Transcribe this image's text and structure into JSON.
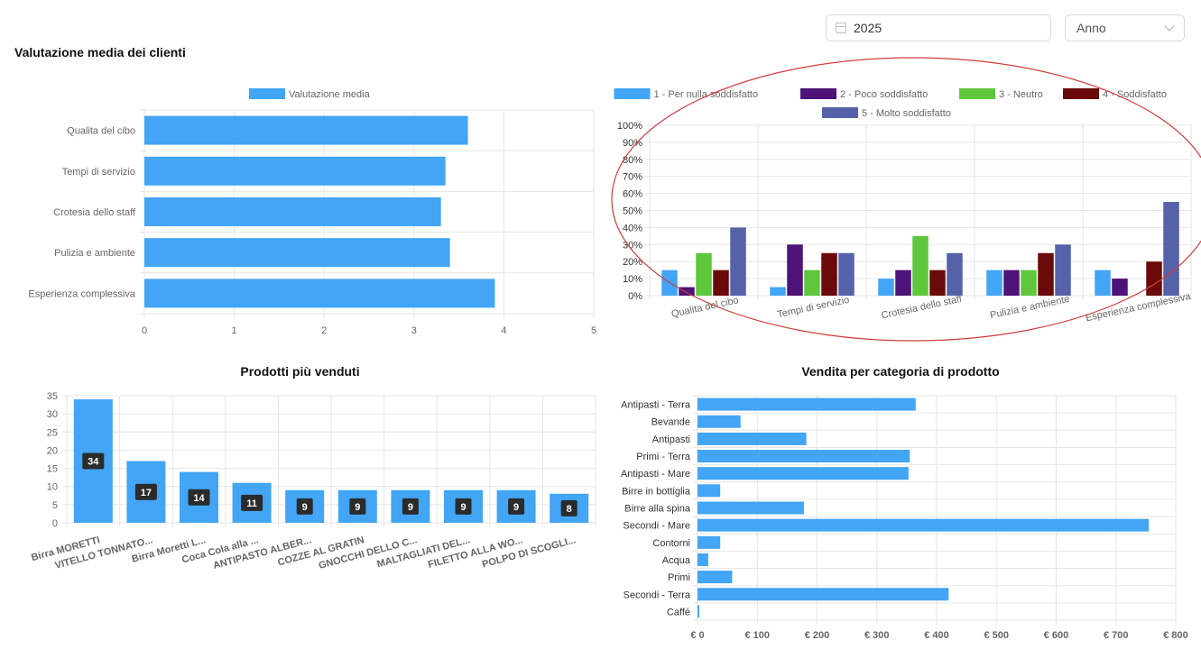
{
  "header": {
    "date_value": "2025",
    "period_select": "Anno",
    "section_title": "Valutazione media dei clienti"
  },
  "colors": {
    "bar_blue": "#42a5f5",
    "highlight_ellipse": "#d23b3b"
  },
  "icons": {
    "calendar": "calendar-icon",
    "dropdown": "chevron-down-icon"
  },
  "chart_data": [
    {
      "id": "avg",
      "type": "bar",
      "orientation": "horizontal",
      "title": "",
      "categories": [
        "Qualita del cibo",
        "Tempi di servizio",
        "Crotesia dello staff",
        "Pulizia e ambiente",
        "Esperienza complessiva"
      ],
      "series": [
        {
          "name": "Valutazione media",
          "values": [
            3.6,
            3.35,
            3.3,
            3.4,
            3.9
          ],
          "color": "#42a5f5"
        }
      ],
      "xlim": [
        0,
        5
      ],
      "ticks": [
        "0",
        "1",
        "2",
        "3",
        "4",
        "5"
      ],
      "legend": "top",
      "grid": true
    },
    {
      "id": "dist",
      "type": "bar",
      "title": "",
      "categories": [
        "Qualita del cibo",
        "Tempi di servizio",
        "Crotesia dello staff",
        "Pulizia e ambiente",
        "Esperienza complessiva"
      ],
      "series": [
        {
          "name": "1 - Per nulla soddisfatto",
          "color": "#42a5f5",
          "values": [
            15,
            5,
            10,
            15,
            15
          ]
        },
        {
          "name": "2 - Poco soddisfatto",
          "color": "#4e1378",
          "values": [
            5,
            30,
            15,
            15,
            10
          ]
        },
        {
          "name": "3 - Neutro",
          "color": "#5ec73c",
          "values": [
            25,
            15,
            35,
            15,
            0
          ]
        },
        {
          "name": "4 - Soddisfatto",
          "color": "#6b0a0a",
          "values": [
            15,
            25,
            15,
            25,
            20
          ]
        },
        {
          "name": "5 - Molto soddisfatto",
          "color": "#5561a8",
          "values": [
            40,
            25,
            25,
            30,
            55
          ]
        }
      ],
      "ylim": [
        0,
        100
      ],
      "ticks": [
        "0%",
        "10%",
        "20%",
        "30%",
        "40%",
        "50%",
        "60%",
        "70%",
        "80%",
        "90%",
        "100%"
      ],
      "legend": "top",
      "grid": true
    },
    {
      "id": "top",
      "type": "bar",
      "title": "Prodotti più venduti",
      "categories": [
        "Birra MORETTI",
        "VITELLO TONNATO...",
        "Birra Moretti L...",
        "Coca Cola alla ...",
        "ANTIPASTO ALBER...",
        "COZZE AL GRATIN",
        "GNOCCHI DELLO C...",
        "MALTAGLIATI DEL...",
        "FILETTO ALLA WO...",
        "POLPO DI SCOGLI..."
      ],
      "values": [
        34,
        17,
        14,
        11,
        9,
        9,
        9,
        9,
        9,
        8
      ],
      "data_labels": [
        "34",
        "17",
        "14",
        "11",
        "9",
        "9",
        "9",
        "9",
        "9",
        "8"
      ],
      "ylim": [
        0,
        35
      ],
      "ticks": [
        "0",
        "5",
        "10",
        "15",
        "20",
        "25",
        "30",
        "35"
      ],
      "grid": true
    },
    {
      "id": "cat",
      "type": "bar",
      "orientation": "horizontal",
      "title": "Vendita per categoria di prodotto",
      "categories": [
        "Antipasti - Terra",
        "Bevande",
        "Antipasti",
        "Primi - Terra",
        "Antipasti - Mare",
        "Birre in bottiglia",
        "Birre alla spina",
        "Secondi - Mare",
        "Contorni",
        "Acqua",
        "Primi",
        "Secondi - Terra",
        "Caffé"
      ],
      "values": [
        365,
        72,
        182,
        355,
        353,
        38,
        178,
        755,
        38,
        18,
        58,
        420,
        3
      ],
      "xlim": [
        0,
        800
      ],
      "ticks": [
        "€ 0",
        "€ 100",
        "€ 200",
        "€ 300",
        "€ 400",
        "€ 500",
        "€ 600",
        "€ 700",
        "€ 800"
      ],
      "grid": true
    }
  ]
}
